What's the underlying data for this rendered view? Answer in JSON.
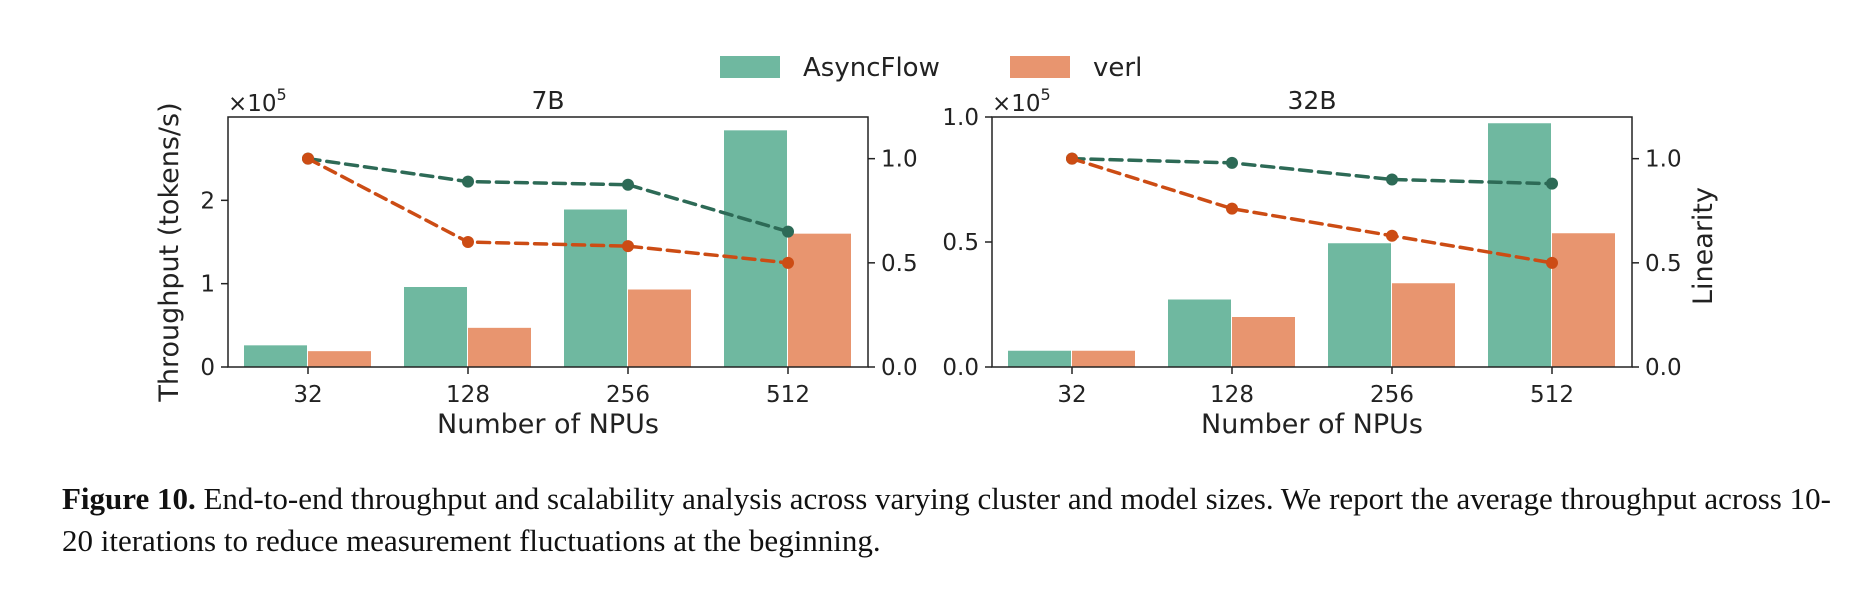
{
  "legend": [
    {
      "label": "AsyncFlow",
      "color": "#6fb8a0"
    },
    {
      "label": "verl",
      "color": "#e8956f"
    }
  ],
  "colors": {
    "asyncflow_bar": "#6fb8a0",
    "verl_bar": "#e8956f",
    "asyncflow_line": "#2d6a56",
    "verl_line": "#cc4c14"
  },
  "chart_data": [
    {
      "type": "bar",
      "title": "7B",
      "xlabel": "Number of NPUs",
      "ylabel": "Throughput (tokens/s)",
      "y2label": "",
      "ylim": [
        0,
        3.0
      ],
      "y_multiplier": "×10",
      "y_multiplier_exp": "5",
      "yticks": [
        0,
        1,
        2
      ],
      "ytick_labels": [
        "0",
        "1",
        "2"
      ],
      "y2lim": [
        0,
        1.2
      ],
      "y2ticks": [
        0.0,
        0.5,
        1.0
      ],
      "y2tick_labels": [
        "0.0",
        "0.5",
        "1.0"
      ],
      "categories": [
        "32",
        "128",
        "256",
        "512"
      ],
      "series": [
        {
          "name": "AsyncFlow",
          "kind": "bar",
          "values": [
            0.26,
            0.96,
            1.89,
            2.84
          ]
        },
        {
          "name": "verl",
          "kind": "bar",
          "values": [
            0.19,
            0.47,
            0.93,
            1.6
          ]
        }
      ],
      "linearity": [
        {
          "name": "AsyncFlow",
          "values": [
            1.0,
            0.89,
            0.875,
            0.65
          ]
        },
        {
          "name": "verl",
          "values": [
            1.0,
            0.6,
            0.58,
            0.5
          ]
        }
      ]
    },
    {
      "type": "bar",
      "title": "32B",
      "xlabel": "Number of NPUs",
      "ylabel": "",
      "y2label": "Linearity",
      "ylim": [
        0,
        1.0
      ],
      "y_multiplier": "×10",
      "y_multiplier_exp": "5",
      "yticks": [
        0.0,
        0.5,
        1.0
      ],
      "ytick_labels": [
        "0.0",
        "0.5",
        "1.0"
      ],
      "y2lim": [
        0,
        1.2
      ],
      "y2ticks": [
        0.0,
        0.5,
        1.0
      ],
      "y2tick_labels": [
        "0.0",
        "0.5",
        "1.0"
      ],
      "categories": [
        "32",
        "128",
        "256",
        "512"
      ],
      "series": [
        {
          "name": "AsyncFlow",
          "kind": "bar",
          "values": [
            0.065,
            0.27,
            0.495,
            0.975
          ]
        },
        {
          "name": "verl",
          "kind": "bar",
          "values": [
            0.065,
            0.2,
            0.335,
            0.535
          ]
        }
      ],
      "linearity": [
        {
          "name": "AsyncFlow",
          "values": [
            1.0,
            0.98,
            0.9,
            0.88
          ]
        },
        {
          "name": "verl",
          "values": [
            1.0,
            0.76,
            0.63,
            0.5
          ]
        }
      ]
    }
  ],
  "caption": {
    "label": "Figure 10.",
    "text": " End-to-end throughput and scalability analysis across varying cluster and model sizes. We report the average throughput across 10-20 iterations to reduce measurement fluctuations at the beginning."
  }
}
